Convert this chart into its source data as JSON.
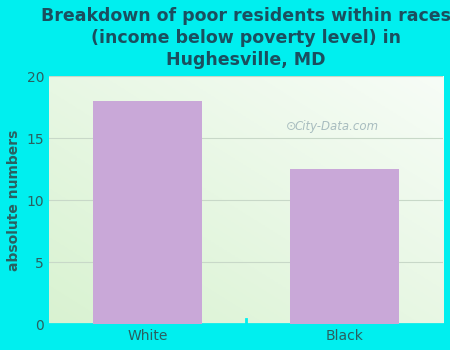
{
  "title": "Breakdown of poor residents within races\n(income below poverty level) in\nHughesville, MD",
  "categories": [
    "White",
    "Black"
  ],
  "values": [
    18,
    12.5
  ],
  "bar_color": "#c9a8d8",
  "ylabel": "absolute numbers",
  "ylim": [
    0,
    20
  ],
  "yticks": [
    0,
    5,
    10,
    15,
    20
  ],
  "bg_color": "#00efef",
  "title_color": "#1a4f5f",
  "tick_color": "#2a6060",
  "ylabel_color": "#2a6060",
  "grid_color": "#c8d8c8",
  "watermark": "City-Data.com",
  "title_fontsize": 12.5,
  "ylabel_fontsize": 10,
  "tick_fontsize": 10
}
